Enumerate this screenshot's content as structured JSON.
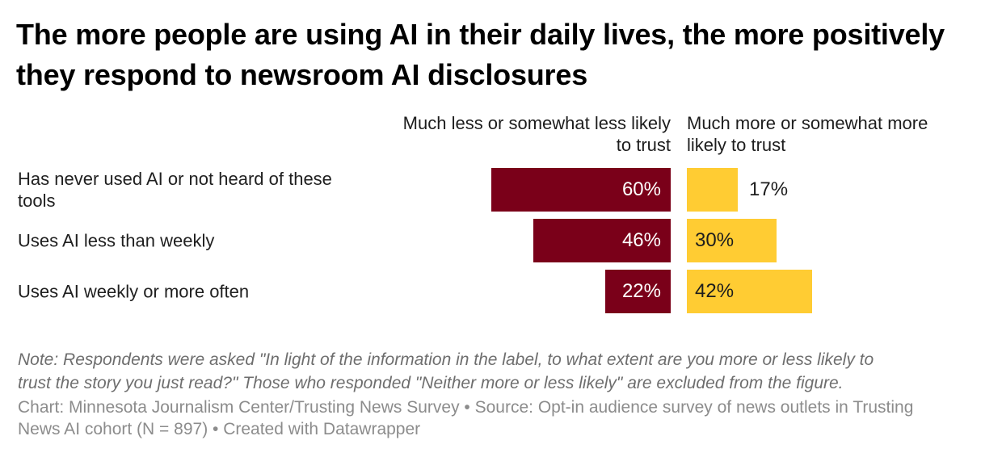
{
  "chart_data": {
    "type": "bar",
    "variant": "diverging-horizontal",
    "title": "The more people are using AI in their daily lives, the more positively they respond to newsroom AI disclosures",
    "categories": [
      "Has never used AI or not heard of these\ntools",
      "Uses AI less than weekly",
      "Uses AI weekly or more often"
    ],
    "series": [
      {
        "name": "Much less or somewhat less likely\nto trust",
        "direction": "left",
        "values": [
          60,
          46,
          22
        ],
        "labels": [
          "60%",
          "46%",
          "22%"
        ],
        "color": "#7a0019",
        "label_color": "#ffffff"
      },
      {
        "name": "Much more or somewhat more\nlikely to trust",
        "direction": "right",
        "values": [
          17,
          30,
          42
        ],
        "labels": [
          "17%",
          "30%",
          "42%"
        ],
        "color": "#ffcc33",
        "label_color": "#1d1d1d"
      }
    ],
    "unit": "%",
    "xlim": [
      0,
      60
    ],
    "grid": false,
    "legend_position": "column-headers-above-bars"
  },
  "note": {
    "text": "Note: Respondents were asked \"In light of the information in the label, to what extent are you more or less likely to\ntrust the story you just read?\" Those who responded \"Neither more or less likely\" are excluded from the figure."
  },
  "caption": {
    "text": "Chart: Minnesota Journalism Center/Trusting News Survey • Source: Opt-in audience survey of news outlets in Trusting\nNews AI cohort (N = 897) • Created with Datawrapper"
  },
  "colors": {
    "negative_bar": "#7a0019",
    "positive_bar": "#ffcc33",
    "title": "#000000",
    "label_text": "#202020",
    "value_on_negative": "#ffffff",
    "value_on_positive": "#1d1d1d",
    "note_text": "#6e6e6e",
    "caption_text": "#8c8c8c",
    "background": "#ffffff"
  }
}
